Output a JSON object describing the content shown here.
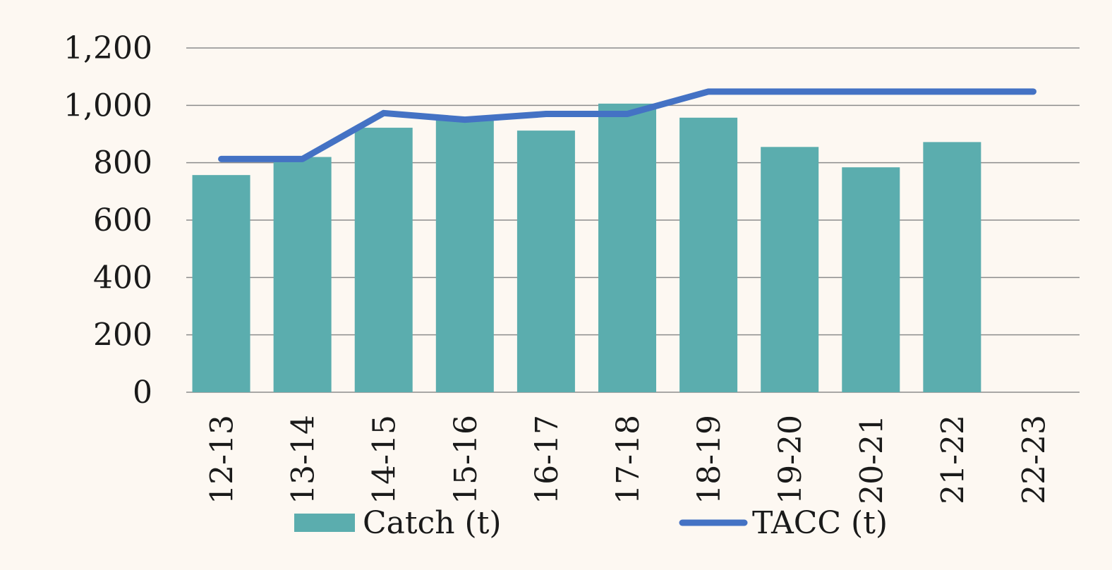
{
  "chart_data": {
    "type": "bar",
    "categories": [
      "12-13",
      "13-14",
      "14-15",
      "15-16",
      "16-17",
      "17-18",
      "18-19",
      "19-20",
      "20-21",
      "21-22",
      "22-23"
    ],
    "series": [
      {
        "name": "Catch (t)",
        "type": "bar",
        "color": "#5badae",
        "values": [
          757,
          820,
          922,
          960,
          912,
          1006,
          957,
          855,
          784,
          872,
          null
        ]
      },
      {
        "name": "TACC (t)",
        "type": "line",
        "color": "#4472c4",
        "values": [
          813,
          813,
          973,
          950,
          970,
          970,
          1048,
          1048,
          1048,
          1048,
          1048
        ]
      }
    ],
    "ylim": [
      0,
      1200
    ],
    "yticks": [
      "0",
      "200",
      "400",
      "600",
      "800",
      "1,000",
      "1,200"
    ],
    "grid": true,
    "legend_position": "bottom"
  },
  "colors": {
    "background": "#fdf8f2",
    "gridline": "#8c8c8c"
  }
}
